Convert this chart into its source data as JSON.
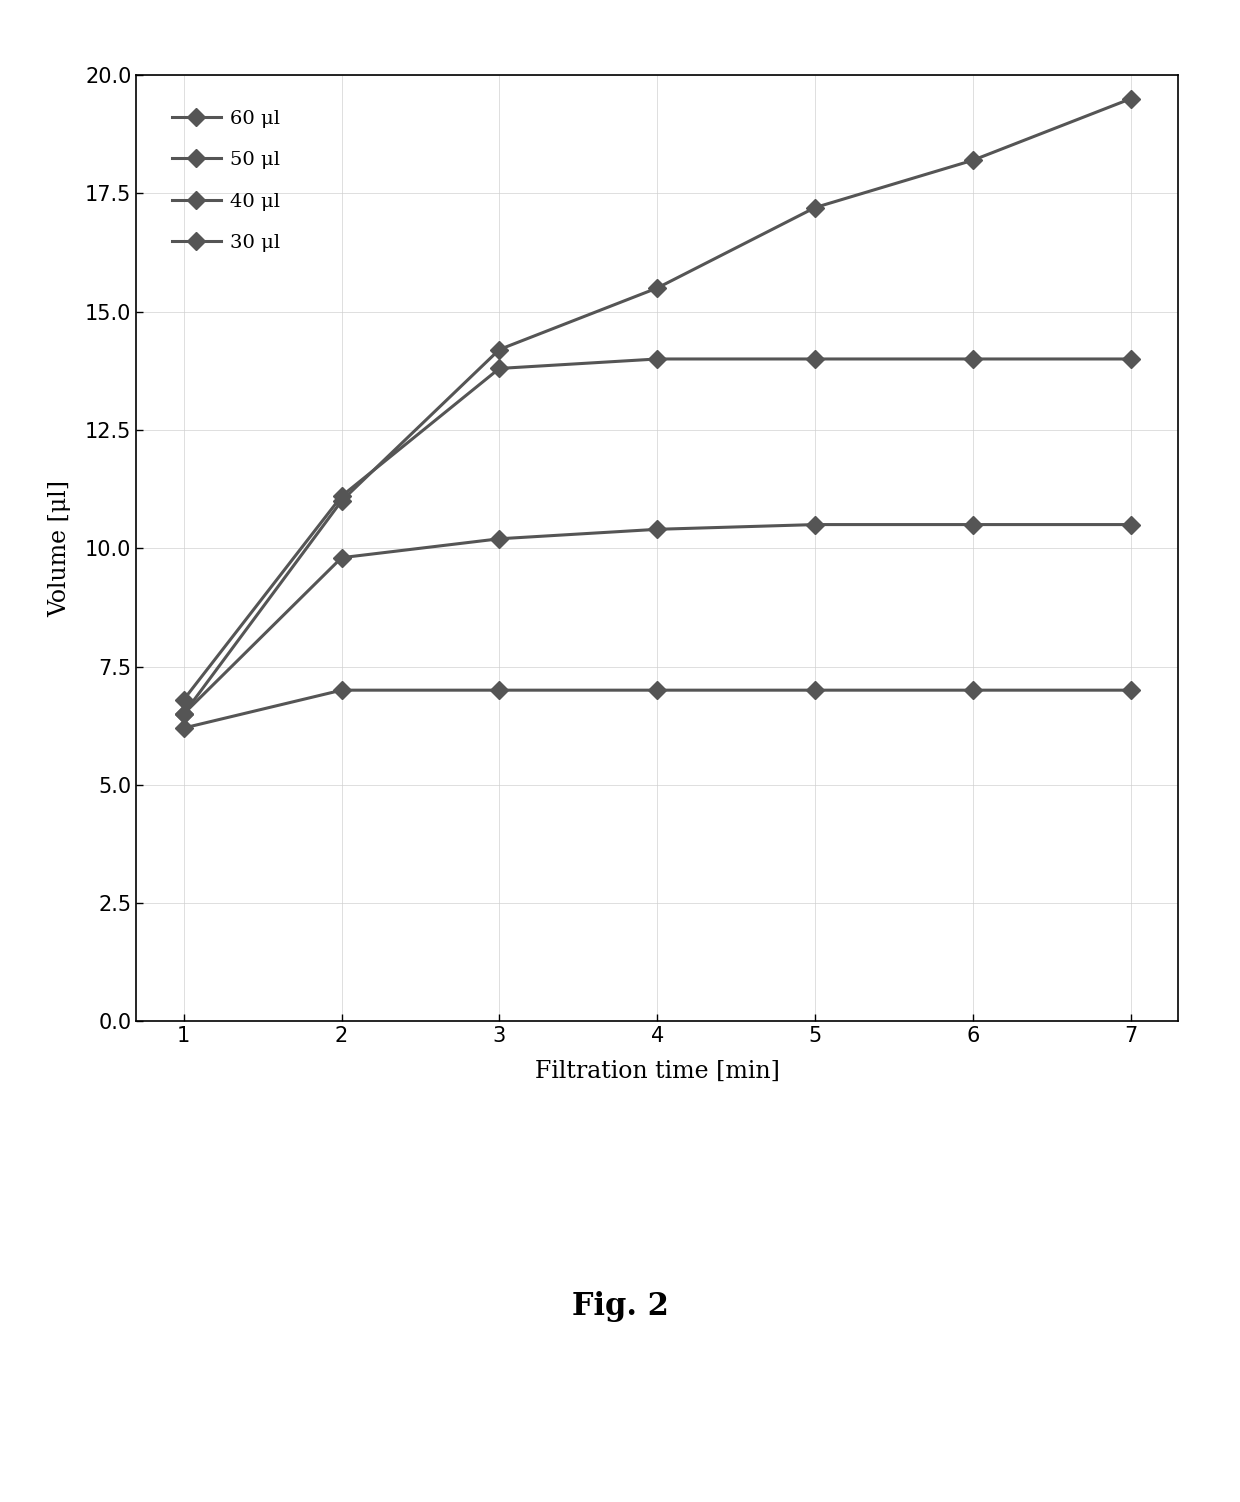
{
  "x": [
    1,
    2,
    3,
    4,
    5,
    6,
    7
  ],
  "series": {
    "60ul": [
      6.5,
      11.0,
      14.2,
      15.5,
      17.2,
      18.2,
      19.5
    ],
    "50ul": [
      6.5,
      9.8,
      10.2,
      10.4,
      10.5,
      10.5,
      10.5
    ],
    "40ul": [
      6.8,
      11.1,
      13.8,
      14.0,
      14.0,
      14.0,
      14.0
    ],
    "30ul": [
      6.2,
      7.0,
      7.0,
      7.0,
      7.0,
      7.0,
      7.0
    ]
  },
  "labels": {
    "60ul": "60 μl",
    "50ul": "50 μl",
    "40ul": "40 μl",
    "30ul": "30 μl"
  },
  "line_color": "#555555",
  "xlabel": "Filtration time [min]",
  "ylabel": "Volume [μl]",
  "ylim": [
    0,
    20
  ],
  "xlim": [
    0.7,
    7.3
  ],
  "yticks": [
    0,
    2.5,
    5,
    7.5,
    10,
    12.5,
    15,
    17.5,
    20
  ],
  "xticks": [
    1,
    2,
    3,
    4,
    5,
    6,
    7
  ],
  "fig_caption": "Fig. 2",
  "linewidth": 2.2,
  "markersize": 9,
  "marker": "D"
}
